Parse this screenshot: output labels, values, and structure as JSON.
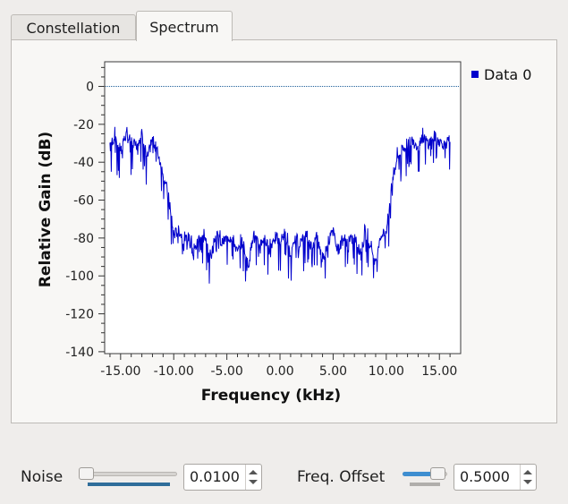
{
  "tabs": [
    {
      "label": "Constellation",
      "active": false
    },
    {
      "label": "Spectrum",
      "active": true
    }
  ],
  "chart_data": {
    "type": "line",
    "title": "",
    "xlabel": "Frequency (kHz)",
    "ylabel": "Relative Gain (dB)",
    "xlim": [
      -16.5,
      17.0
    ],
    "ylim": [
      -141,
      13
    ],
    "xticks": [
      "-15.00",
      "-10.00",
      "-5.00",
      "0.00",
      "5.00",
      "10.00",
      "15.00"
    ],
    "xtick_values": [
      -15,
      -10,
      -5,
      0,
      5,
      10,
      15
    ],
    "yticks": [
      0,
      -20,
      -40,
      -60,
      -80,
      -100,
      -120,
      -140
    ],
    "reference_line": 0,
    "legend": {
      "placement": "right",
      "entries": [
        "Data 0"
      ]
    },
    "series": [
      {
        "name": "Data 0",
        "color": "#0000cc",
        "x": [
          -16.0,
          -15.5,
          -15.0,
          -14.5,
          -14.0,
          -13.5,
          -13.0,
          -12.5,
          -12.0,
          -11.5,
          -11.0,
          -10.5,
          -10.25,
          -10.0,
          -9.5,
          -9.0,
          -8.5,
          -8.0,
          -7.5,
          -7.0,
          -6.5,
          -6.0,
          -5.5,
          -5.0,
          -4.5,
          -4.0,
          -3.5,
          -3.0,
          -2.5,
          -2.0,
          -1.5,
          -1.0,
          -0.5,
          0.0,
          0.5,
          1.0,
          1.5,
          2.0,
          2.5,
          3.0,
          3.5,
          4.0,
          4.5,
          5.0,
          5.5,
          6.0,
          6.5,
          7.0,
          7.5,
          8.0,
          8.5,
          9.0,
          9.5,
          10.0,
          10.25,
          10.5,
          11.0,
          11.5,
          12.0,
          12.5,
          13.0,
          13.5,
          14.0,
          14.5,
          15.0,
          15.5,
          16.0
        ],
        "values": [
          -30,
          -27,
          -33,
          -26,
          -29,
          -31,
          -25,
          -38,
          -28,
          -35,
          -45,
          -58,
          -70,
          -78,
          -76,
          -82,
          -79,
          -86,
          -78,
          -81,
          -90,
          -77,
          -83,
          -80,
          -79,
          -88,
          -81,
          -95,
          -78,
          -84,
          -80,
          -86,
          -79,
          -82,
          -77,
          -90,
          -80,
          -83,
          -78,
          -85,
          -79,
          -92,
          -81,
          -77,
          -86,
          -80,
          -83,
          -79,
          -88,
          -78,
          -82,
          -94,
          -79,
          -76,
          -66,
          -52,
          -38,
          -33,
          -30,
          -28,
          -32,
          -27,
          -30,
          -26,
          -29,
          -31,
          -28
        ]
      }
    ]
  },
  "controls": {
    "noise": {
      "label": "Noise",
      "value": "0.0100",
      "slider_fraction": 0.0
    },
    "freq_offset": {
      "label": "Freq. Offset",
      "value": "0.5000",
      "slider_fraction": 0.75
    }
  }
}
